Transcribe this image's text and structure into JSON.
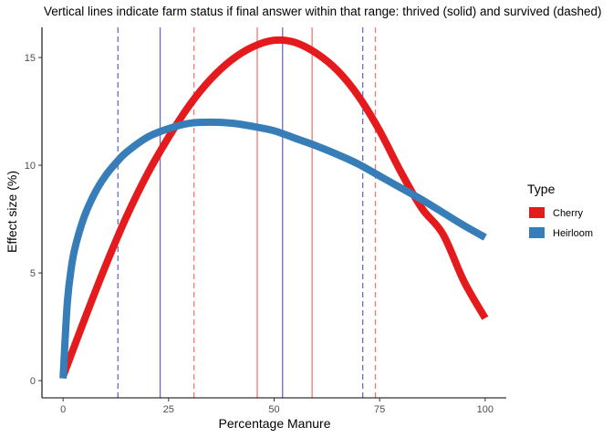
{
  "chart_data": {
    "type": "line",
    "title": "Vertical lines indicate farm status if final answer within that range: thrived (solid) and survived (dashed)",
    "xlabel": "Percentage Manure",
    "ylabel": "Effect size (%)",
    "xlim": [
      -5,
      105
    ],
    "ylim": [
      -0.8,
      16.4
    ],
    "x_ticks": [
      0,
      25,
      50,
      75,
      100
    ],
    "y_ticks": [
      0,
      5,
      10,
      15
    ],
    "grid": false,
    "legend": {
      "title": "Type",
      "placement": "right",
      "entries": [
        {
          "label": "Cherry",
          "color": "#E41A1C"
        },
        {
          "label": "Heirloom",
          "color": "#377EB8"
        }
      ]
    },
    "series": [
      {
        "name": "Cherry",
        "color": "#E41A1C",
        "x": [
          0,
          5,
          10,
          15,
          20,
          25,
          30,
          35,
          40,
          45,
          50,
          55,
          60,
          65,
          70,
          75,
          80,
          85,
          90,
          95,
          100
        ],
        "y": [
          0.2,
          2.8,
          5.3,
          7.6,
          9.6,
          11.3,
          12.8,
          14.0,
          14.9,
          15.5,
          15.8,
          15.7,
          15.2,
          14.4,
          13.2,
          11.6,
          9.7,
          8.0,
          6.8,
          4.6,
          2.9
        ]
      },
      {
        "name": "Heirloom",
        "color": "#377EB8",
        "x": [
          0,
          1,
          2,
          3,
          5,
          7.5,
          10,
          12.5,
          15,
          20,
          25,
          30,
          35,
          40,
          45,
          50,
          55,
          60,
          65,
          70,
          75,
          80,
          85,
          90,
          95,
          100
        ],
        "y": [
          0.1,
          3.6,
          5.3,
          6.3,
          7.6,
          8.7,
          9.5,
          10.1,
          10.6,
          11.3,
          11.7,
          11.95,
          12.0,
          11.95,
          11.8,
          11.6,
          11.25,
          10.9,
          10.5,
          10.05,
          9.5,
          8.95,
          8.4,
          7.8,
          7.2,
          6.65
        ]
      }
    ],
    "vertical_lines": [
      {
        "x": 46,
        "series": "Cherry",
        "style": "solid",
        "color": "#F8766D"
      },
      {
        "x": 59,
        "series": "Cherry",
        "style": "solid",
        "color": "#F8766D"
      },
      {
        "x": 31,
        "series": "Cherry",
        "style": "dashed",
        "color": "#F8766D"
      },
      {
        "x": 74,
        "series": "Cherry",
        "style": "dashed",
        "color": "#F8766D"
      },
      {
        "x": 23,
        "series": "Heirloom",
        "style": "solid",
        "color": "#6A6ACD"
      },
      {
        "x": 52,
        "series": "Heirloom",
        "style": "solid",
        "color": "#6A6ACD"
      },
      {
        "x": 13,
        "series": "Heirloom",
        "style": "dashed",
        "color": "#6A6ACD"
      },
      {
        "x": 71,
        "series": "Heirloom",
        "style": "dashed",
        "color": "#6A6ACD"
      }
    ]
  }
}
